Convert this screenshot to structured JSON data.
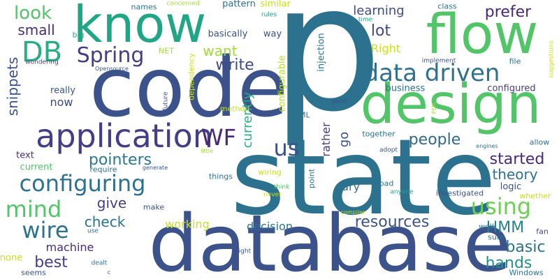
{
  "cloud": {
    "words": [
      {
        "text": "p",
        "color": "#2c728e"
      },
      {
        "text": "state",
        "color": "#2c728e"
      },
      {
        "text": "code",
        "color": "#3b528b"
      },
      {
        "text": "database",
        "color": "#3b528b"
      },
      {
        "text": "know",
        "color": "#21a685"
      },
      {
        "text": "flow",
        "color": "#52c569"
      },
      {
        "text": "design",
        "color": "#52c569"
      },
      {
        "text": "application",
        "color": "#433e85"
      },
      {
        "text": "data driven",
        "color": "#2c728e"
      },
      {
        "text": "configuring",
        "color": "#2c728e"
      },
      {
        "text": "Spring",
        "color": "#433e85"
      },
      {
        "text": "DB",
        "color": "#28ae80"
      },
      {
        "text": "WF",
        "color": "#482878"
      },
      {
        "text": "mind",
        "color": "#52c569"
      },
      {
        "text": "wire",
        "color": "#2c728e"
      },
      {
        "text": "using",
        "color": "#6ece58"
      },
      {
        "text": "us",
        "color": "#3b528b"
      },
      {
        "text": "look",
        "color": "#52c569"
      },
      {
        "text": "small",
        "color": "#472d7b"
      },
      {
        "text": "prefer",
        "color": "#482878"
      },
      {
        "text": "lot",
        "color": "#3e4989"
      },
      {
        "text": "write",
        "color": "#3e4989"
      },
      {
        "text": "want",
        "color": "#a0da39"
      },
      {
        "text": "Right",
        "color": "#c8e020"
      },
      {
        "text": "learning",
        "color": "#3e4989"
      },
      {
        "text": "pointers",
        "color": "#2a788e"
      },
      {
        "text": "people",
        "color": "#31688e"
      },
      {
        "text": "started",
        "color": "#482878"
      },
      {
        "text": "theory",
        "color": "#2c728e"
      },
      {
        "text": "resources",
        "color": "#3b528b"
      },
      {
        "text": "best",
        "color": "#433e85"
      },
      {
        "text": "give",
        "color": "#433e85"
      },
      {
        "text": "check",
        "color": "#2c728e"
      },
      {
        "text": "HMM",
        "color": "#26828e"
      },
      {
        "text": "basic",
        "color": "#2c728e"
      },
      {
        "text": "hands",
        "color": "#21918c"
      },
      {
        "text": "machine",
        "color": "#472d7b"
      },
      {
        "text": "decision",
        "color": "#2c728e"
      },
      {
        "text": "working",
        "color": "#c8e020"
      },
      {
        "text": "snippets",
        "color": "#3b528b"
      },
      {
        "text": "now",
        "color": "#3e4989"
      },
      {
        "text": "really",
        "color": "#3b528b"
      },
      {
        "text": "business",
        "color": "#2c728e"
      },
      {
        "text": "configured",
        "color": "#433e85"
      },
      {
        "text": "currently",
        "color": "#28ae80"
      },
      {
        "text": "rather",
        "color": "#433e85"
      },
      {
        "text": "go",
        "color": "#3b528b"
      },
      {
        "text": "dry",
        "color": "#2c728e"
      },
      {
        "text": "logic",
        "color": "#3b528b"
      },
      {
        "text": "basically",
        "color": "#3b528b"
      },
      {
        "text": "way",
        "color": "#3b528b"
      },
      {
        "text": "pattern",
        "color": "#2c728e"
      },
      {
        "text": "similar",
        "color": "#c8e020"
      },
      {
        "text": "names",
        "color": "#2c728e"
      },
      {
        "text": "concerned",
        "color": "#a0da39"
      },
      {
        "text": "rules",
        "color": "#21918c"
      },
      {
        "text": "class",
        "color": "#2c728e"
      },
      {
        "text": "time",
        "color": "#21a685"
      },
      {
        "text": "big",
        "color": "#21a685"
      },
      {
        "text": "NET",
        "color": "#a0da39"
      },
      {
        "text": "wondering",
        "color": "#433e85"
      },
      {
        "text": "Opensource",
        "color": "#3b528b"
      },
      {
        "text": "dependency",
        "color": "#c8e020"
      },
      {
        "text": "configurable",
        "color": "#b5de2b"
      },
      {
        "text": "injection",
        "color": "#2c728e"
      },
      {
        "text": "implement",
        "color": "#3b528b"
      },
      {
        "text": "file",
        "color": "#2c728e"
      },
      {
        "text": "suggestions",
        "color": "#c8e020"
      },
      {
        "text": "future",
        "color": "#3b528b"
      },
      {
        "text": "method",
        "color": "#c8e020"
      },
      {
        "text": "XML",
        "color": "#2c728e"
      },
      {
        "text": "good",
        "color": "#3b528b"
      },
      {
        "text": "FSM",
        "color": "#a0da39"
      },
      {
        "text": "together",
        "color": "#2c728e"
      },
      {
        "text": "adopt",
        "color": "#3b528b"
      },
      {
        "text": "allow",
        "color": "#2c728e"
      },
      {
        "text": "engines",
        "color": "#2c728e"
      },
      {
        "text": "Windows",
        "color": "#2c728e"
      },
      {
        "text": "text",
        "color": "#472d7b"
      },
      {
        "text": "current",
        "color": "#52c569"
      },
      {
        "text": "require",
        "color": "#2c728e"
      },
      {
        "text": "generate",
        "color": "#3b528b"
      },
      {
        "text": "little",
        "color": "#a0da39"
      },
      {
        "text": "things",
        "color": "#2c728e"
      },
      {
        "text": "wiring",
        "color": "#c8e020"
      },
      {
        "text": "point",
        "color": "#2c728e"
      },
      {
        "text": "think",
        "color": "#52c569"
      },
      {
        "text": "never",
        "color": "#c8e020"
      },
      {
        "text": "bad",
        "color": "#2c728e"
      },
      {
        "text": "anyone",
        "color": "#21a685"
      },
      {
        "text": "investigated",
        "color": "#3b528b"
      },
      {
        "text": "whether",
        "color": "#c8e020"
      },
      {
        "text": "make",
        "color": "#3b528b"
      },
      {
        "text": "compiler",
        "color": "#c8e020"
      },
      {
        "text": "use",
        "color": "#2c728e"
      },
      {
        "text": "well",
        "color": "#2c728e"
      },
      {
        "text": "sure",
        "color": "#2c728e"
      },
      {
        "text": "fan",
        "color": "#3b528b"
      },
      {
        "text": "might",
        "color": "#3b528b"
      },
      {
        "text": "none",
        "color": "#c8e020"
      },
      {
        "text": "seems",
        "color": "#3b528b"
      },
      {
        "text": "dealt",
        "color": "#2c728e"
      },
      {
        "text": "c",
        "color": "#3b528b"
      }
    ]
  }
}
